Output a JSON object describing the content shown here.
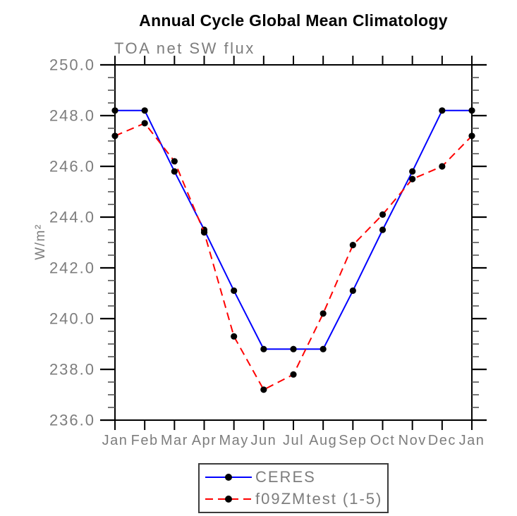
{
  "chart_data": {
    "type": "line",
    "title": "Annual Cycle Global Mean Climatology",
    "subtitle": "TOA net SW flux",
    "xlabel": "",
    "ylabel": "W/m²",
    "x_categories": [
      "Jan",
      "Feb",
      "Mar",
      "Apr",
      "May",
      "Jun",
      "Jul",
      "Aug",
      "Sep",
      "Oct",
      "Nov",
      "Dec",
      "Jan"
    ],
    "ylim": [
      236.0,
      250.0
    ],
    "y_major_step": 2.0,
    "y_minor_step": 0.5,
    "y_tick_labels": [
      "236.0",
      "238.0",
      "240.0",
      "242.0",
      "244.0",
      "246.0",
      "248.0",
      "250.0"
    ],
    "grid": false,
    "legend_position": "bottom-center",
    "series": [
      {
        "name": "CERES",
        "line_style": "solid",
        "line_color": "#0000ff",
        "marker": "circle",
        "marker_color": "#000000",
        "values": [
          248.2,
          248.2,
          245.8,
          243.5,
          241.1,
          238.8,
          238.8,
          238.8,
          241.1,
          243.5,
          245.8,
          248.2,
          248.2
        ]
      },
      {
        "name": "f09ZMtest (1-5)",
        "line_style": "dashed",
        "line_color": "#ff0000",
        "marker": "circle",
        "marker_color": "#000000",
        "values": [
          247.2,
          247.7,
          246.2,
          243.4,
          239.3,
          237.2,
          237.8,
          240.2,
          242.9,
          244.1,
          245.5,
          246.0,
          247.2
        ]
      }
    ],
    "colors": {
      "axis": "#000000",
      "labels": "#7d7d7d",
      "title": "#000000",
      "background": "#ffffff"
    }
  }
}
